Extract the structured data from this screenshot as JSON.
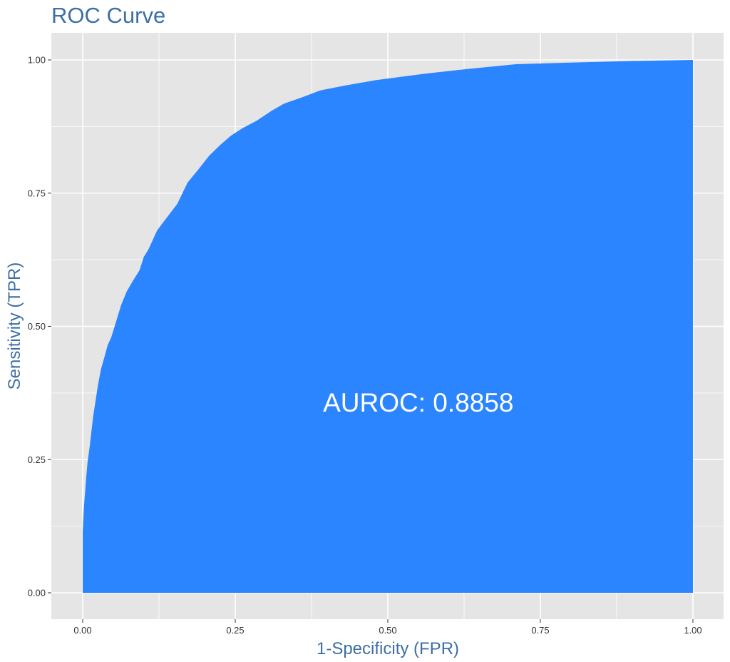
{
  "colors": {
    "panel_background": "#e5e5e5",
    "grid": "#ffffff",
    "area_fill": "#2b85ff",
    "title_text": "#3d6fa5",
    "tick_text": "#333333",
    "annotation_text": "#ffffff"
  },
  "chart_data": {
    "type": "area",
    "title": "ROC Curve",
    "xlabel": "1-Specificity (FPR)",
    "ylabel": "Sensitivity (TPR)",
    "xlim": [
      0,
      1
    ],
    "ylim": [
      0,
      1
    ],
    "grid": true,
    "legend": "none",
    "x_ticks": [
      {
        "value": 0,
        "label": "0.00"
      },
      {
        "value": 0.25,
        "label": "0.25"
      },
      {
        "value": 0.5,
        "label": "0.50"
      },
      {
        "value": 0.75,
        "label": "0.75"
      },
      {
        "value": 1,
        "label": "1.00"
      }
    ],
    "y_ticks": [
      {
        "value": 0,
        "label": "0.00"
      },
      {
        "value": 0.25,
        "label": "0.25"
      },
      {
        "value": 0.5,
        "label": "0.50"
      },
      {
        "value": 0.75,
        "label": "0.75"
      },
      {
        "value": 1,
        "label": "1.00"
      }
    ],
    "annotation": {
      "text": "AUROC: 0.8858",
      "x": 0.55,
      "y": 0.34
    },
    "series": [
      {
        "x": [
          0.0,
          0.0,
          0.001,
          0.002,
          0.004,
          0.006,
          0.008,
          0.011,
          0.014,
          0.017,
          0.021,
          0.025,
          0.03,
          0.035,
          0.041,
          0.047,
          0.055,
          0.063,
          0.072,
          0.082,
          0.093,
          0.1,
          0.108,
          0.122,
          0.135,
          0.155,
          0.172,
          0.19,
          0.207,
          0.225,
          0.243,
          0.262,
          0.285,
          0.31,
          0.33,
          0.36,
          0.39,
          0.43,
          0.48,
          0.56,
          0.63,
          0.71,
          0.8,
          0.9,
          1.0
        ],
        "y": [
          0.0,
          0.115,
          0.14,
          0.16,
          0.19,
          0.22,
          0.245,
          0.27,
          0.3,
          0.33,
          0.36,
          0.39,
          0.42,
          0.44,
          0.465,
          0.48,
          0.51,
          0.54,
          0.565,
          0.585,
          0.605,
          0.63,
          0.645,
          0.68,
          0.7,
          0.73,
          0.77,
          0.795,
          0.82,
          0.84,
          0.858,
          0.872,
          0.886,
          0.905,
          0.918,
          0.93,
          0.943,
          0.952,
          0.962,
          0.974,
          0.983,
          0.992,
          0.995,
          0.998,
          1.0
        ]
      }
    ]
  }
}
